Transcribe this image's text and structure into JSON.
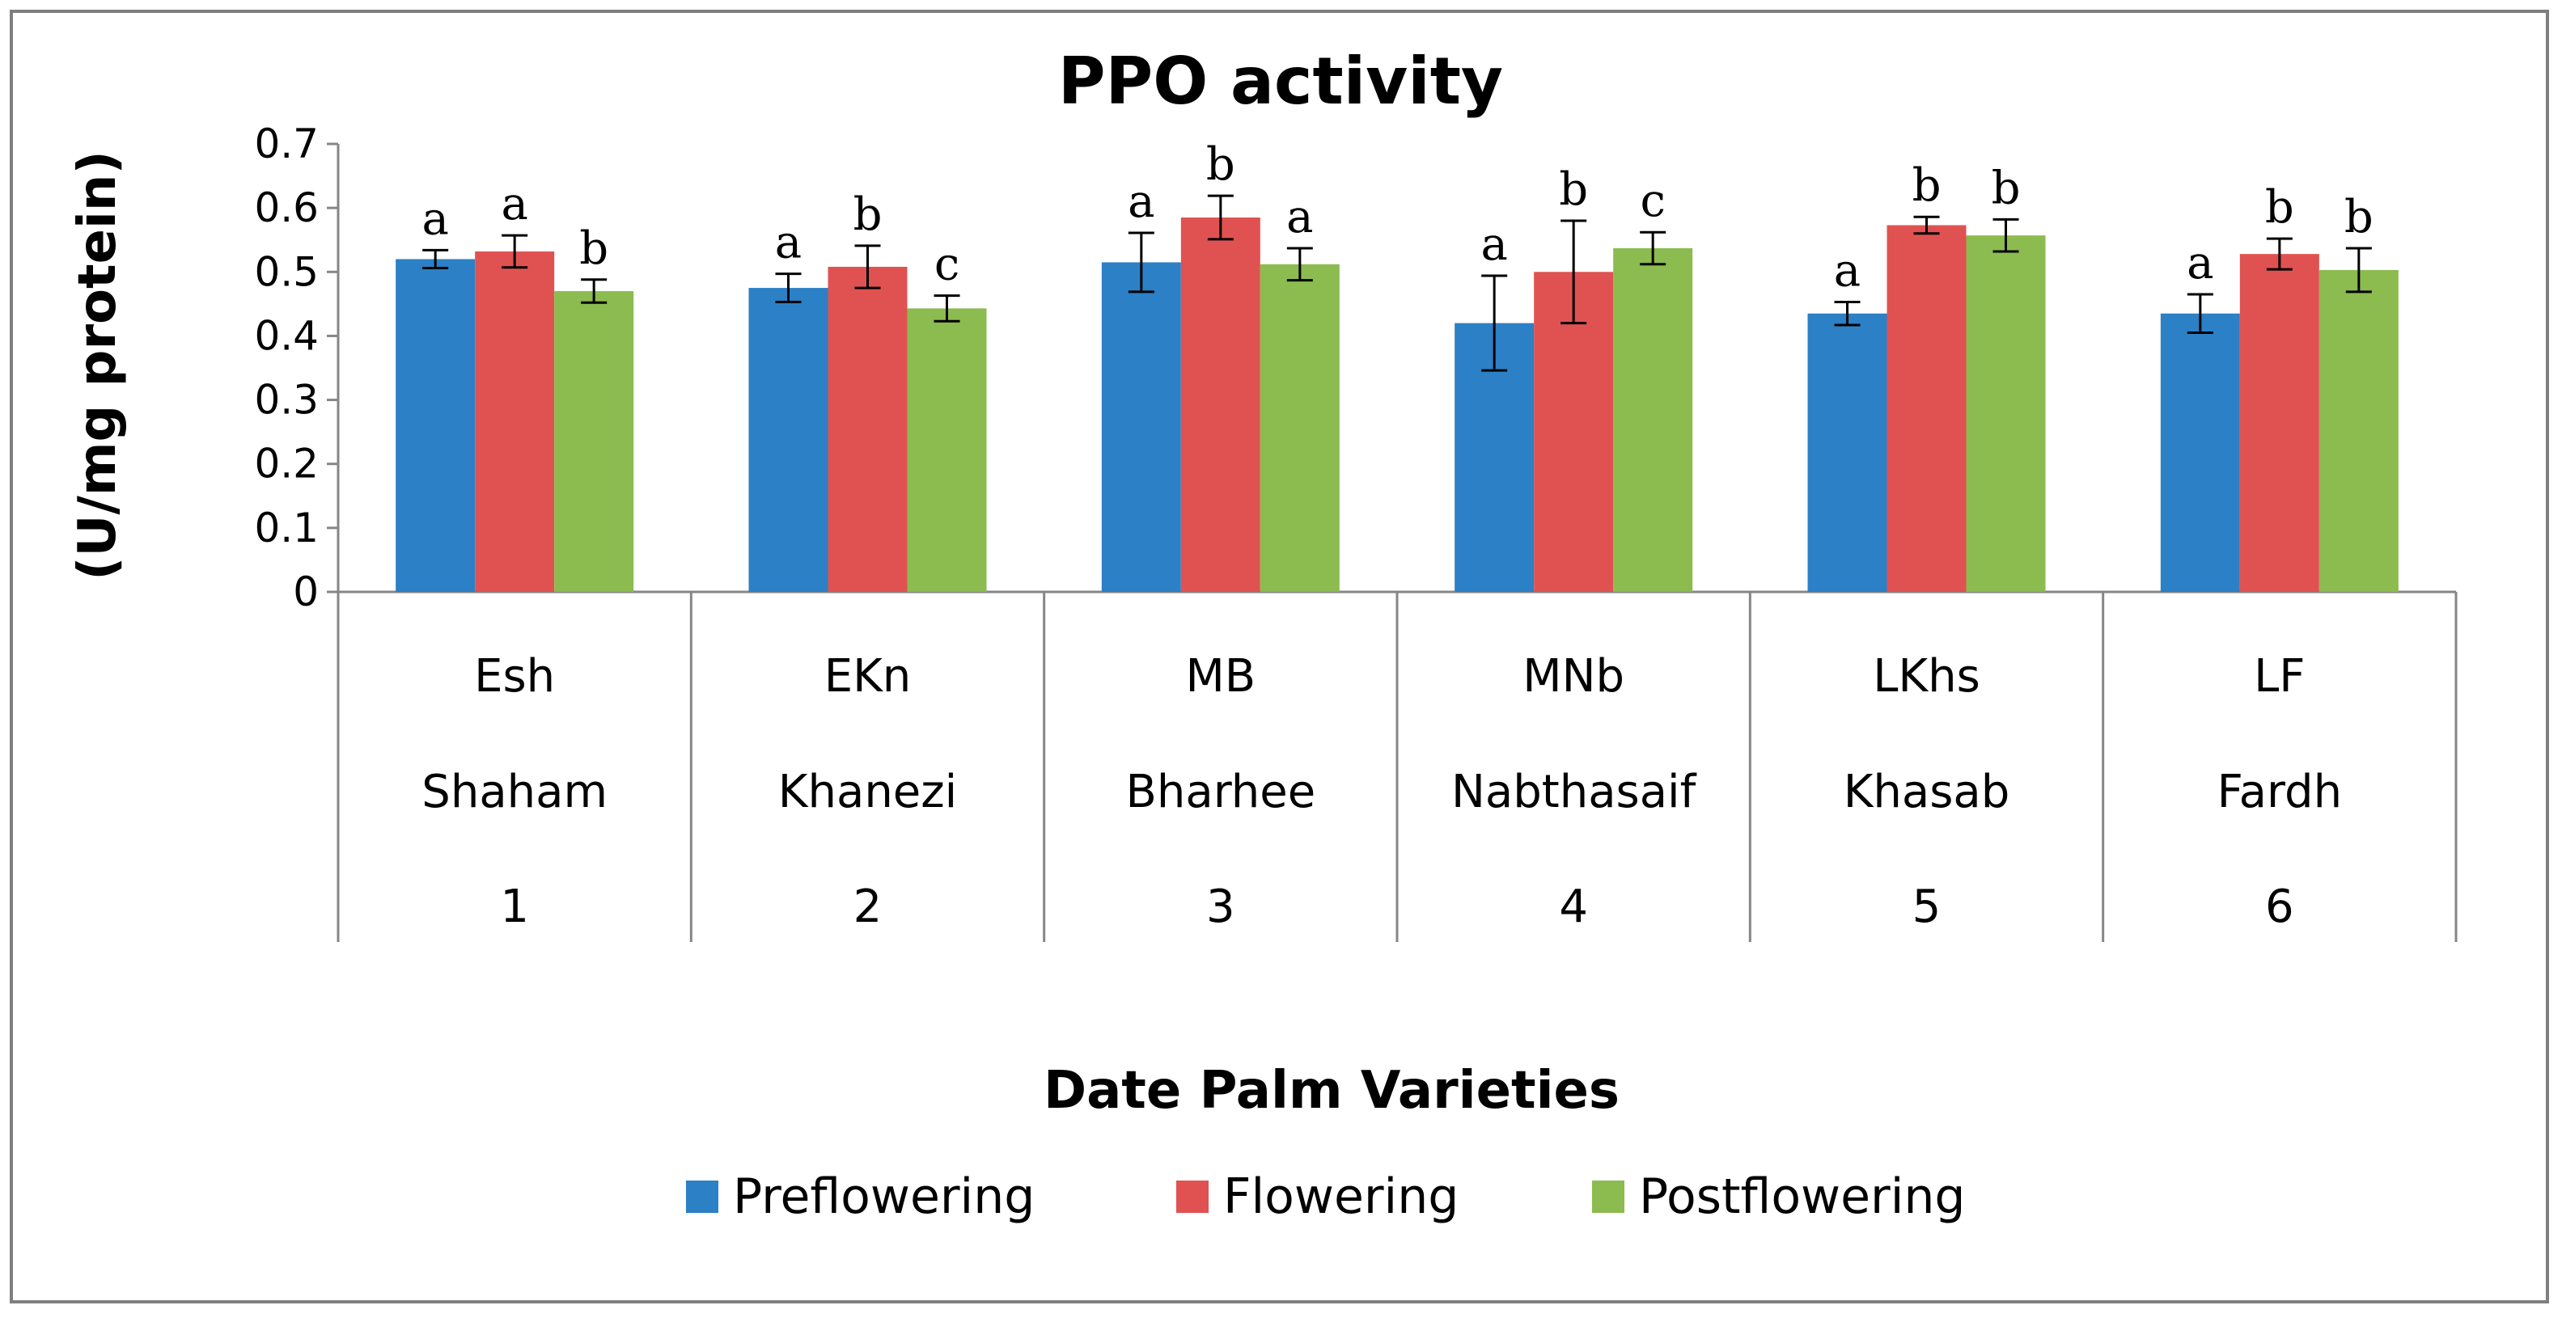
{
  "chart_data": {
    "type": "bar",
    "title": "PPO activity",
    "xlabel": "Date Palm Varieties",
    "ylabel": "(U/mg protein)",
    "ylim": [
      0,
      0.7
    ],
    "yticks": [
      "0",
      "0.1",
      "0.2",
      "0.3",
      "0.4",
      "0.5",
      "0.6",
      "0.7"
    ],
    "grid": false,
    "legend_position": "bottom",
    "categories": [
      {
        "code": "Esh",
        "name": "Shaham",
        "num": "1"
      },
      {
        "code": "EKn",
        "name": "Khanezi",
        "num": "2"
      },
      {
        "code": "MB",
        "name": "Bharhee",
        "num": "3"
      },
      {
        "code": "MNb",
        "name": "Nabthasaif",
        "num": "4"
      },
      {
        "code": "LKhs",
        "name": "Khasab",
        "num": "5"
      },
      {
        "code": "LF",
        "name": "Fardh",
        "num": "6"
      }
    ],
    "series": [
      {
        "name": "Preflowering",
        "color": "#2b80c6",
        "values": [
          0.52,
          0.475,
          0.515,
          0.42,
          0.435,
          0.435
        ],
        "errors": [
          0.014,
          0.022,
          0.046,
          0.074,
          0.018,
          0.03
        ],
        "labels": [
          "a",
          "a",
          "a",
          "a",
          "a",
          "a"
        ]
      },
      {
        "name": "Flowering",
        "color": "#e05252",
        "values": [
          0.532,
          0.508,
          0.585,
          0.5,
          0.573,
          0.528
        ],
        "errors": [
          0.025,
          0.033,
          0.034,
          0.08,
          0.013,
          0.024
        ],
        "labels": [
          "a",
          "b",
          "b",
          "b",
          "b",
          "b"
        ]
      },
      {
        "name": "Postflowering",
        "color": "#8cbb4f",
        "values": [
          0.47,
          0.443,
          0.512,
          0.537,
          0.557,
          0.503
        ],
        "errors": [
          0.018,
          0.02,
          0.025,
          0.025,
          0.025,
          0.034
        ],
        "labels": [
          "b",
          "c",
          "a",
          "c",
          "b",
          "b"
        ]
      }
    ]
  }
}
